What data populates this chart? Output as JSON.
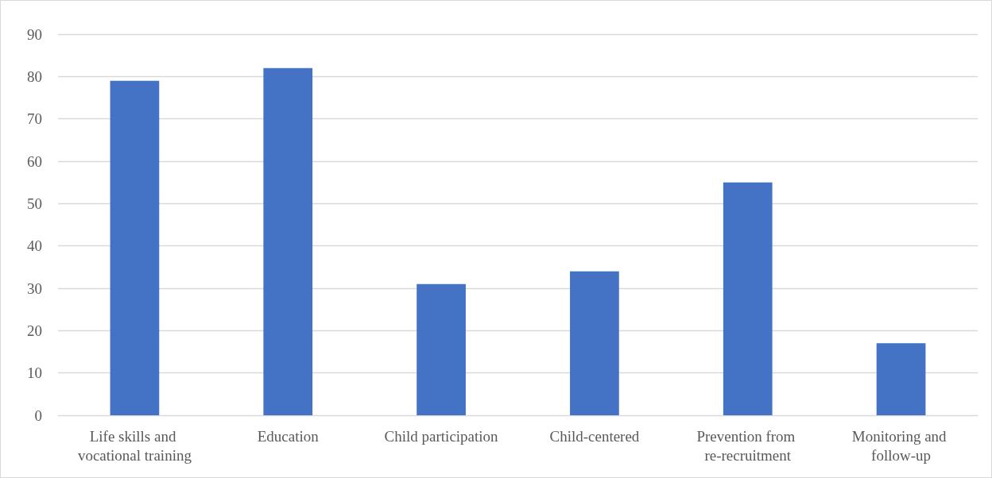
{
  "chart_data": {
    "type": "bar",
    "categories": [
      "Life skills and vocational training",
      "Education",
      "Child participation",
      "Child-centered",
      "Prevention from re-recruitment",
      "Monitoring and follow-up"
    ],
    "values": [
      79,
      82,
      31,
      34,
      55,
      17
    ],
    "color": "#4472c4",
    "ylim": [
      0,
      90
    ],
    "yticks": [
      0,
      10,
      20,
      30,
      40,
      50,
      60,
      70,
      80,
      90
    ],
    "grid": "y"
  }
}
